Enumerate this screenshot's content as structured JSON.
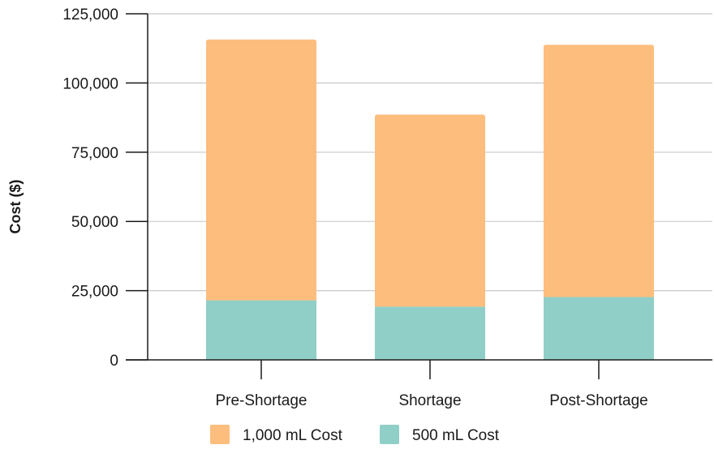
{
  "chart_data": {
    "type": "bar",
    "stacked": true,
    "title": "",
    "xlabel": "",
    "ylabel": "Cost ($)",
    "ylim": [
      0,
      125000
    ],
    "yticks": [
      0,
      25000,
      50000,
      75000,
      100000,
      125000
    ],
    "ytick_labels": [
      "0",
      "25,000",
      "50,000",
      "75,000",
      "100,000",
      "125,000"
    ],
    "categories": [
      "Pre-Shortage",
      "Shortage",
      "Post-Shortage"
    ],
    "series": [
      {
        "name": "500 mL Cost",
        "color": "#90cfc7",
        "values": [
          21500,
          19200,
          22700
        ]
      },
      {
        "name": "1,000 mL Cost",
        "color": "#fdbd7d",
        "values": [
          94200,
          69400,
          91100
        ]
      }
    ],
    "legend": {
      "position": "bottom",
      "items": [
        "1,000 mL Cost",
        "500 mL Cost"
      ]
    },
    "grid": true
  }
}
